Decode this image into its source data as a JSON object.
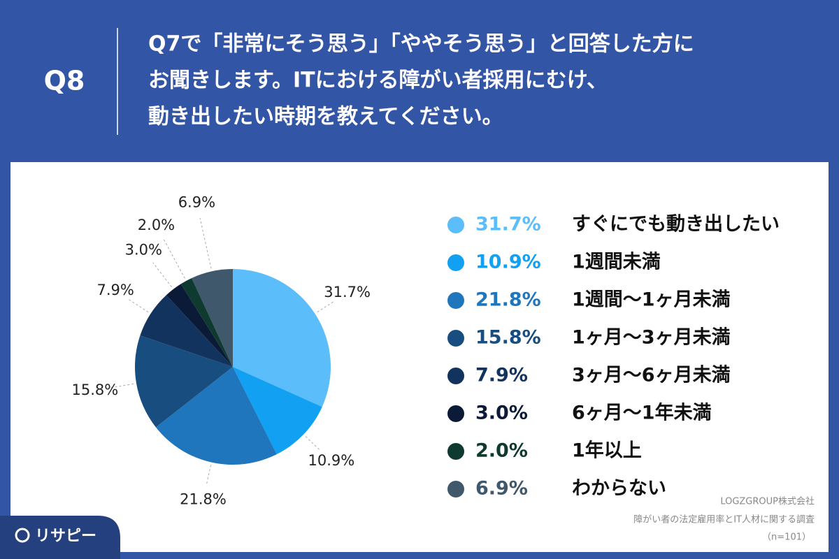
{
  "header": {
    "label": "Q8",
    "question": [
      "Q7で「非常にそう思う」「ややそう思う」と回答した方に",
      "お聞きします。ITにおける障がい者採用にむけ、",
      "動き出したい時期を教えてください。"
    ]
  },
  "chart_data": {
    "type": "pie",
    "categories": [
      "すぐにでも動き出したい",
      "1週間未満",
      "1週間〜1ヶ月未満",
      "1ヶ月〜3ヶ月未満",
      "3ヶ月〜6ヶ月未満",
      "6ヶ月〜1年未満",
      "1年以上",
      "わからない"
    ],
    "values": [
      31.7,
      10.9,
      21.8,
      15.8,
      7.9,
      3.0,
      2.0,
      6.9
    ],
    "value_labels": [
      "31.7%",
      "10.9%",
      "21.8%",
      "15.8%",
      "7.9%",
      "3.0%",
      "2.0%",
      "6.9%"
    ],
    "colors": [
      "#5bbdf9",
      "#12a0f2",
      "#1f76bd",
      "#184d80",
      "#13335f",
      "#0b1a37",
      "#0f3a30",
      "#3f586b"
    ]
  },
  "footer": {
    "company": "LOGZGROUP株式会社",
    "survey": "障がい者の法定雇用率とIT人材に関する調査",
    "n": "（n=101）"
  },
  "logo": "リサピー"
}
